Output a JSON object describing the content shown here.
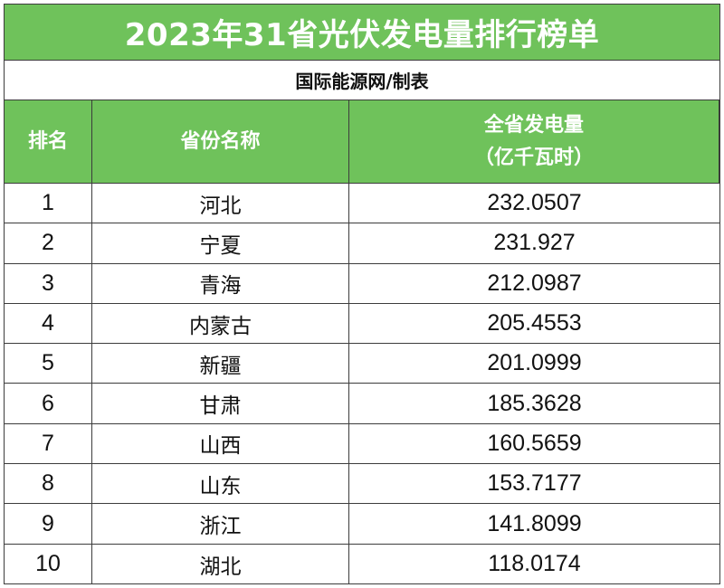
{
  "title": "2023年31省光伏发电量排行榜单",
  "maker": "国际能源网/制表",
  "colors": {
    "header_green": "#6fc25b",
    "grid": "#3c3c3c"
  },
  "table": {
    "headers": {
      "rank": "排名",
      "province": "省份名称",
      "power_line1": "全省发电量",
      "power_line2": "（亿千瓦时）"
    },
    "rows": [
      {
        "rank": "1",
        "province": "河北",
        "value": "232.0507"
      },
      {
        "rank": "2",
        "province": "宁夏",
        "value": "231.927"
      },
      {
        "rank": "3",
        "province": "青海",
        "value": "212.0987"
      },
      {
        "rank": "4",
        "province": "内蒙古",
        "value": "205.4553"
      },
      {
        "rank": "5",
        "province": "新疆",
        "value": "201.0999"
      },
      {
        "rank": "6",
        "province": "甘肃",
        "value": "185.3628"
      },
      {
        "rank": "7",
        "province": "山西",
        "value": "160.5659"
      },
      {
        "rank": "8",
        "province": "山东",
        "value": "153.7177"
      },
      {
        "rank": "9",
        "province": "浙江",
        "value": "141.8099"
      },
      {
        "rank": "10",
        "province": "湖北",
        "value": "118.0174"
      }
    ]
  }
}
